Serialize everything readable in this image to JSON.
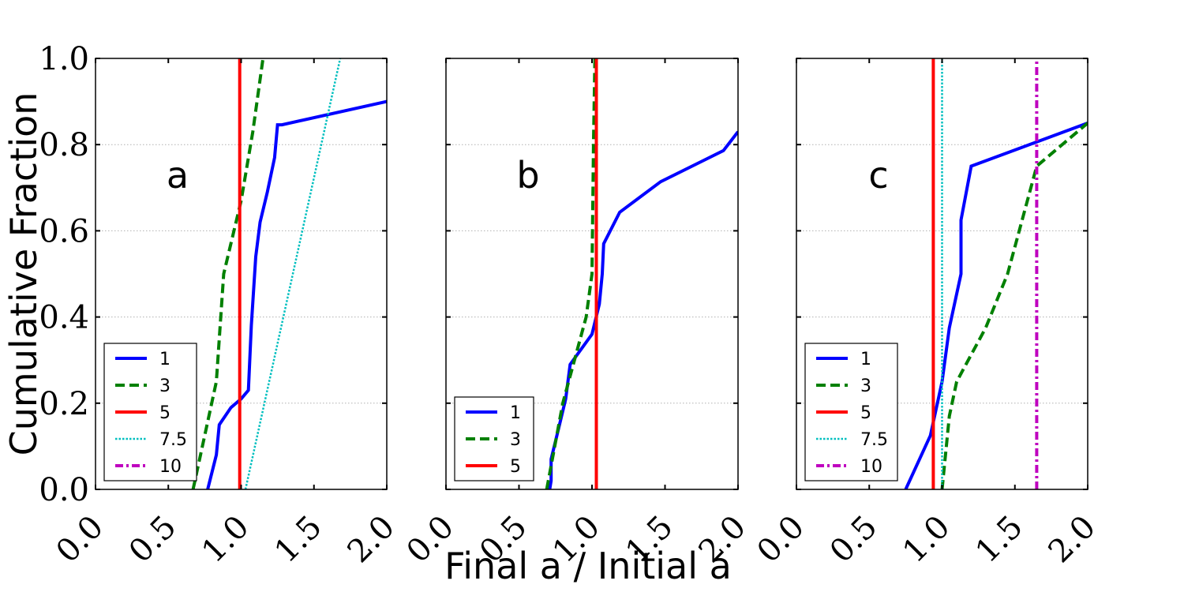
{
  "figure": {
    "ylabel": "Cumulative Fraction",
    "xlabel": "Final a / Initial a"
  },
  "chart_data": [
    {
      "type": "line",
      "panel_label": "a",
      "xlim": [
        0,
        2
      ],
      "ylim": [
        0,
        1
      ],
      "xticks": [
        "0.0",
        "0.5",
        "1.0",
        "1.5",
        "2.0"
      ],
      "yticks": [
        "0.0",
        "0.2",
        "0.4",
        "0.6",
        "0.8",
        "1.0"
      ],
      "show_yticklabels": true,
      "grid": "y",
      "legend": "lower-left",
      "series": [
        {
          "name": "1",
          "color": "#0000ff",
          "style": "solid",
          "x": [
            0.77,
            0.83,
            0.85,
            0.93,
            1.0,
            1.05,
            1.07,
            1.1,
            1.13,
            1.18,
            1.23,
            1.25,
            1.28,
            2.0
          ],
          "y": [
            0.0,
            0.08,
            0.15,
            0.19,
            0.21,
            0.23,
            0.38,
            0.54,
            0.62,
            0.69,
            0.77,
            0.846,
            0.846,
            0.9
          ]
        },
        {
          "name": "3",
          "color": "#008000",
          "style": "dashed",
          "x": [
            0.67,
            0.83,
            0.88,
            1.0,
            1.08,
            1.15
          ],
          "y": [
            0.0,
            0.25,
            0.5,
            0.67,
            0.83,
            1.0
          ]
        },
        {
          "name": "5",
          "color": "#ff0000",
          "style": "solid",
          "x": [
            0.99,
            0.99
          ],
          "y": [
            0.0,
            1.0
          ]
        },
        {
          "name": "7.5",
          "color": "#00bfbf",
          "style": "dotted",
          "x": [
            1.03,
            1.68
          ],
          "y": [
            0.0,
            1.0
          ]
        },
        {
          "name": "10",
          "color": "#bf00bf",
          "style": "dashdot",
          "x": [],
          "y": []
        }
      ]
    },
    {
      "type": "line",
      "panel_label": "b",
      "xlim": [
        0,
        2
      ],
      "ylim": [
        0,
        1
      ],
      "xticks": [
        "0.0",
        "0.5",
        "1.0",
        "1.5",
        "2.0"
      ],
      "yticks": [
        "0.0",
        "0.2",
        "0.4",
        "0.6",
        "0.8",
        "1.0"
      ],
      "show_yticklabels": false,
      "grid": "y",
      "legend": "lower-left",
      "series": [
        {
          "name": "1",
          "color": "#0000ff",
          "style": "solid",
          "x": [
            0.71,
            0.72,
            0.72,
            0.77,
            0.82,
            0.85,
            1.0,
            1.05,
            1.07,
            1.08,
            1.19,
            1.47,
            1.9,
            2.0
          ],
          "y": [
            0.0,
            0.02,
            0.07,
            0.14,
            0.21,
            0.29,
            0.36,
            0.43,
            0.5,
            0.57,
            0.643,
            0.714,
            0.786,
            0.83
          ]
        },
        {
          "name": "3",
          "color": "#008000",
          "style": "dashed",
          "x": [
            0.69,
            0.8,
            0.88,
            0.96,
            1.0,
            1.01,
            1.02
          ],
          "y": [
            0.0,
            0.2,
            0.3,
            0.4,
            0.5,
            0.8,
            1.0
          ]
        },
        {
          "name": "5",
          "color": "#ff0000",
          "style": "solid",
          "x": [
            1.03,
            1.03
          ],
          "y": [
            0.0,
            1.0
          ]
        }
      ]
    },
    {
      "type": "line",
      "panel_label": "c",
      "xlim": [
        0,
        2
      ],
      "ylim": [
        0,
        1
      ],
      "xticks": [
        "0.0",
        "0.5",
        "1.0",
        "1.5",
        "2.0"
      ],
      "yticks": [
        "0.0",
        "0.2",
        "0.4",
        "0.6",
        "0.8",
        "1.0"
      ],
      "show_yticklabels": false,
      "grid": "y",
      "legend": "lower-left",
      "series": [
        {
          "name": "1",
          "color": "#0000ff",
          "style": "solid",
          "x": [
            0.75,
            0.92,
            1.0,
            1.05,
            1.13,
            1.13,
            1.2,
            2.0
          ],
          "y": [
            0.0,
            0.125,
            0.25,
            0.375,
            0.5,
            0.625,
            0.75,
            0.85
          ]
        },
        {
          "name": "3",
          "color": "#008000",
          "style": "dashed",
          "x": [
            1.0,
            1.05,
            1.1,
            1.3,
            1.45,
            1.65,
            2.0
          ],
          "y": [
            0.0,
            0.17,
            0.25,
            0.375,
            0.5,
            0.75,
            0.85
          ]
        },
        {
          "name": "5",
          "color": "#ff0000",
          "style": "solid",
          "x": [
            0.94,
            0.94
          ],
          "y": [
            0.0,
            1.0
          ]
        },
        {
          "name": "7.5",
          "color": "#00bfbf",
          "style": "dotted",
          "x": [
            1.0,
            1.0
          ],
          "y": [
            0.0,
            1.0
          ]
        },
        {
          "name": "10",
          "color": "#bf00bf",
          "style": "dashdot",
          "x": [
            1.65,
            1.65
          ],
          "y": [
            0.0,
            1.0
          ]
        }
      ]
    }
  ]
}
